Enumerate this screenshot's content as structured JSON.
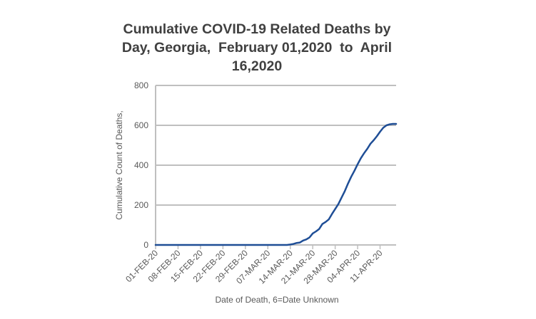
{
  "chart_data": {
    "type": "line",
    "title_lines": [
      "Cumulative COVID-19 Related Deaths by",
      "Day, Georgia,  February 01,2020  to  April",
      "16,2020"
    ],
    "xlabel": "Date of Death, 6=Date Unknown",
    "ylabel": "Cumulative Count of Deaths,",
    "ylim": [
      0,
      800
    ],
    "yticks": [
      0,
      200,
      400,
      600,
      800
    ],
    "xlim": [
      "01-FEB-20",
      "16-APR-20"
    ],
    "xticks": [
      "01-FEB-20",
      "08-FEB-20",
      "15-FEB-20",
      "22-FEB-20",
      "29-FEB-20",
      "07-MAR-20",
      "14-MAR-20",
      "21-MAR-20",
      "28-MAR-20",
      "04-APR-20",
      "11-APR-20"
    ],
    "grid": true,
    "colors": {
      "line": "#1f4e96",
      "grid": "#bfbfbf",
      "axis": "#bfbfbf"
    },
    "series": [
      {
        "x": [
          "01-FEB-20",
          "03-MAR-20",
          "10-MAR-20",
          "13-MAR-20",
          "14-MAR-20",
          "15-MAR-20",
          "16-MAR-20",
          "17-MAR-20",
          "18-MAR-20",
          "19-MAR-20",
          "20-MAR-20",
          "21-MAR-20",
          "22-MAR-20",
          "23-MAR-20",
          "24-MAR-20",
          "25-MAR-20",
          "26-MAR-20",
          "27-MAR-20",
          "28-MAR-20",
          "29-MAR-20",
          "30-MAR-20",
          "31-MAR-20",
          "01-APR-20",
          "02-APR-20",
          "03-APR-20",
          "04-APR-20",
          "05-APR-20",
          "06-APR-20",
          "07-APR-20",
          "08-APR-20",
          "09-APR-20",
          "10-APR-20",
          "11-APR-20",
          "12-APR-20",
          "13-APR-20",
          "14-APR-20",
          "15-APR-20",
          "16-APR-20"
        ],
        "y": [
          0,
          0,
          0,
          0,
          2,
          5,
          10,
          12,
          22,
          28,
          38,
          58,
          68,
          80,
          105,
          115,
          128,
          155,
          180,
          205,
          238,
          270,
          308,
          342,
          372,
          405,
          435,
          460,
          482,
          508,
          525,
          545,
          568,
          588,
          600,
          605,
          607,
          607
        ]
      }
    ]
  }
}
